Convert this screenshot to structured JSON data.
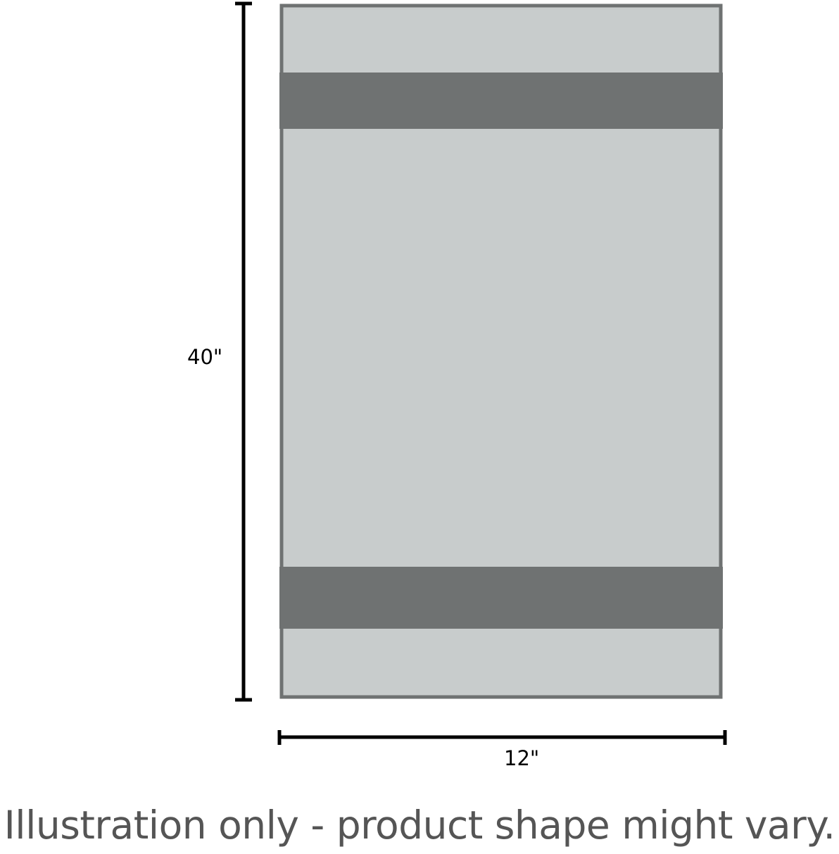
{
  "dimensions": {
    "height_label": "40\"",
    "width_label": "12\""
  },
  "caption": "Illustration only - product shape might vary.",
  "colors": {
    "fill": "#c8cccc",
    "border": "#6f7272",
    "band": "#6f7272",
    "dimension_line": "#000000",
    "caption": "#555555"
  }
}
